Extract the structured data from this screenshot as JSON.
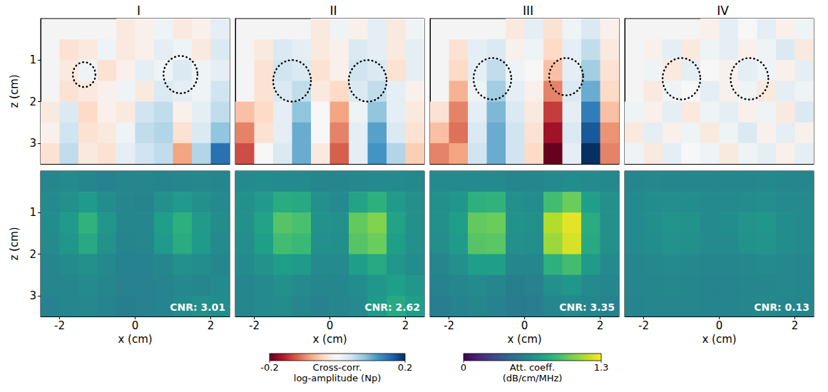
{
  "chart_data": [
    {
      "type": "heatmap",
      "title": "I",
      "ylabel": "z (cm)",
      "tick_labels": "y",
      "xlim": [
        -2.5,
        2.5
      ],
      "xticks": [
        -2,
        0,
        2
      ],
      "ylim": [
        0,
        3.5
      ],
      "yticks": [
        1,
        2,
        3
      ],
      "x": [
        -2.25,
        -1.75,
        -1.25,
        -0.75,
        -0.25,
        0.25,
        0.75,
        1.25,
        1.75,
        2.25
      ],
      "y": [
        0.25,
        0.75,
        1.25,
        1.75,
        2.25,
        2.75,
        3.25
      ],
      "cells": [
        [
          null,
          null,
          null,
          null,
          -0.02,
          -0.01,
          0.01,
          -0.02,
          -0.01,
          0.02
        ],
        [
          null,
          -0.03,
          -0.02,
          0.01,
          -0.02,
          -0.01,
          0.02,
          0.01,
          -0.02,
          0.03
        ],
        [
          null,
          -0.02,
          0.01,
          -0.03,
          -0.01,
          0.02,
          0.01,
          0.03,
          0.01,
          0.02
        ],
        [
          null,
          -0.03,
          -0.02,
          -0.01,
          0.01,
          -0.02,
          0.03,
          0.02,
          0.01,
          0.04
        ],
        [
          -0.02,
          0.03,
          -0.04,
          -0.01,
          -0.02,
          0.04,
          0.05,
          -0.01,
          0.02,
          0.05
        ],
        [
          -0.01,
          0.04,
          -0.03,
          -0.02,
          0.01,
          0.05,
          0.06,
          -0.03,
          0.03,
          0.08
        ],
        [
          -0.03,
          0.05,
          -0.02,
          -0.03,
          0.02,
          0.04,
          0.05,
          -0.08,
          0.06,
          0.15
        ]
      ],
      "circles": [
        {
          "x": -1.35,
          "z": 1.35,
          "r": 0.3
        },
        {
          "x": 1.2,
          "z": 1.35,
          "r": 0.45
        }
      ],
      "colorbar": {
        "range": [
          -0.2,
          0.2
        ],
        "ticks": [
          -0.2,
          0.2
        ],
        "label": [
          "Cross-corr.",
          "log-amplitude (Np)"
        ]
      }
    },
    {
      "type": "heatmap",
      "title": "II",
      "tick_labels": false,
      "xlim": [
        -2.5,
        2.5
      ],
      "xticks": [
        -2,
        0,
        2
      ],
      "ylim": [
        0,
        3.5
      ],
      "yticks": [
        1,
        2,
        3
      ],
      "x": [
        -2.25,
        -1.75,
        -1.25,
        -0.75,
        -0.25,
        0.25,
        0.75,
        1.25,
        1.75,
        2.25
      ],
      "y": [
        0.25,
        0.75,
        1.25,
        1.75,
        2.25,
        2.75,
        3.25
      ],
      "cells": [
        [
          null,
          null,
          null,
          null,
          -0.02,
          0.01,
          -0.01,
          0.02,
          -0.02,
          0.01
        ],
        [
          null,
          -0.02,
          0.03,
          0.02,
          -0.02,
          -0.01,
          0.03,
          0.02,
          -0.02,
          0.02
        ],
        [
          null,
          -0.03,
          0.04,
          0.03,
          -0.03,
          -0.01,
          0.04,
          0.03,
          -0.03,
          0.02
        ],
        [
          null,
          -0.03,
          0.03,
          0.05,
          -0.02,
          -0.04,
          0.03,
          0.05,
          0.02,
          -0.01
        ],
        [
          -0.06,
          -0.04,
          0.02,
          0.08,
          0.0,
          -0.08,
          0.01,
          0.08,
          0.02,
          -0.02
        ],
        [
          -0.1,
          -0.03,
          0.02,
          0.1,
          0.0,
          -0.1,
          0.02,
          0.11,
          0.03,
          -0.03
        ],
        [
          -0.13,
          0.0,
          0.03,
          0.1,
          -0.02,
          -0.12,
          0.02,
          0.12,
          0.06,
          -0.05
        ]
      ],
      "circles": [
        {
          "x": -1.0,
          "z": 1.5,
          "r": 0.5
        },
        {
          "x": 1.0,
          "z": 1.5,
          "r": 0.5
        }
      ]
    },
    {
      "type": "heatmap",
      "title": "III",
      "tick_labels": false,
      "xlim": [
        -2.5,
        2.5
      ],
      "xticks": [
        -2,
        0,
        2
      ],
      "ylim": [
        0,
        3.5
      ],
      "yticks": [
        1,
        2,
        3
      ],
      "x": [
        -2.25,
        -1.75,
        -1.25,
        -0.75,
        -0.25,
        0.25,
        0.75,
        1.25,
        1.75,
        2.25
      ],
      "y": [
        0.25,
        0.75,
        1.25,
        1.75,
        2.25,
        2.75,
        3.25
      ],
      "cells": [
        [
          null,
          null,
          null,
          null,
          -0.02,
          0.02,
          -0.03,
          0.01,
          0.03,
          -0.01
        ],
        [
          null,
          -0.03,
          0.02,
          0.03,
          -0.01,
          0.01,
          -0.04,
          0.02,
          0.05,
          -0.02
        ],
        [
          null,
          -0.04,
          0.02,
          0.05,
          0.01,
          0.0,
          -0.06,
          0.02,
          0.07,
          -0.03
        ],
        [
          null,
          -0.07,
          0.01,
          0.07,
          0.02,
          -0.01,
          -0.1,
          0.03,
          0.1,
          -0.04
        ],
        [
          -0.03,
          -0.1,
          0.02,
          0.09,
          0.03,
          -0.02,
          -0.14,
          0.02,
          0.14,
          -0.06
        ],
        [
          -0.06,
          -0.11,
          0.03,
          0.1,
          0.04,
          -0.03,
          -0.17,
          0.03,
          0.17,
          -0.09
        ],
        [
          -0.1,
          -0.08,
          0.04,
          0.1,
          0.04,
          -0.04,
          -0.2,
          0.02,
          0.2,
          -0.1
        ]
      ],
      "circles": [
        {
          "x": -0.85,
          "z": 1.45,
          "r": 0.5
        },
        {
          "x": 1.1,
          "z": 1.4,
          "r": 0.45
        }
      ]
    },
    {
      "type": "heatmap",
      "title": "IV",
      "tick_labels": false,
      "xlim": [
        -2.5,
        2.5
      ],
      "xticks": [
        -2,
        0,
        2
      ],
      "ylim": [
        0,
        3.5
      ],
      "yticks": [
        1,
        2,
        3
      ],
      "x": [
        -2.25,
        -1.75,
        -1.25,
        -0.75,
        -0.25,
        0.25,
        0.75,
        1.25,
        1.75,
        2.25
      ],
      "y": [
        0.25,
        0.75,
        1.25,
        1.75,
        2.25,
        2.75,
        3.25
      ],
      "cells": [
        [
          null,
          null,
          null,
          null,
          -0.01,
          0.02,
          0.0,
          0.02,
          -0.01,
          0.01
        ],
        [
          null,
          -0.01,
          0.02,
          -0.02,
          0.01,
          0.02,
          -0.01,
          0.01,
          0.03,
          -0.02
        ],
        [
          null,
          0.01,
          -0.02,
          0.02,
          0.0,
          -0.01,
          0.02,
          0.01,
          -0.01,
          0.02
        ],
        [
          null,
          -0.02,
          0.01,
          0.0,
          0.02,
          -0.01,
          0.01,
          -0.02,
          0.02,
          0.01
        ],
        [
          0.01,
          -0.01,
          0.02,
          -0.02,
          0.01,
          0.02,
          -0.01,
          0.01,
          -0.02,
          0.03
        ],
        [
          -0.02,
          0.02,
          -0.01,
          0.01,
          -0.02,
          0.01,
          0.03,
          -0.01,
          0.02,
          -0.01
        ],
        [
          0.01,
          -0.02,
          0.02,
          0.0,
          0.01,
          -0.02,
          0.01,
          0.02,
          -0.01,
          0.02
        ]
      ],
      "circles": [
        {
          "x": -1.0,
          "z": 1.45,
          "r": 0.5
        },
        {
          "x": 0.8,
          "z": 1.45,
          "r": 0.5
        }
      ]
    },
    {
      "type": "heatmap",
      "xlabel": "x (cm)",
      "ylabel": "z (cm)",
      "annotation": "CNR: 3.01",
      "xlim": [
        -2.5,
        2.5
      ],
      "xticks": [
        -2,
        0,
        2
      ],
      "ylim": [
        0,
        3.5
      ],
      "yticks": [
        1,
        2,
        3
      ],
      "x": [
        -2.25,
        -1.75,
        -1.25,
        -0.75,
        -0.25,
        0.25,
        0.75,
        1.25,
        1.75,
        2.25
      ],
      "y": [
        0.25,
        0.75,
        1.25,
        1.75,
        2.25,
        2.75,
        3.25
      ],
      "cells": [
        [
          0.6,
          0.62,
          0.6,
          0.58,
          0.6,
          0.6,
          0.59,
          0.6,
          0.61,
          0.6
        ],
        [
          0.62,
          0.65,
          0.7,
          0.63,
          0.6,
          0.59,
          0.65,
          0.7,
          0.65,
          0.62
        ],
        [
          0.63,
          0.7,
          0.84,
          0.68,
          0.6,
          0.6,
          0.72,
          0.82,
          0.7,
          0.63
        ],
        [
          0.62,
          0.68,
          0.78,
          0.66,
          0.59,
          0.6,
          0.7,
          0.8,
          0.7,
          0.62
        ],
        [
          0.6,
          0.62,
          0.65,
          0.61,
          0.58,
          0.58,
          0.6,
          0.65,
          0.63,
          0.6
        ],
        [
          0.6,
          0.6,
          0.62,
          0.6,
          0.57,
          0.57,
          0.59,
          0.61,
          0.6,
          0.62
        ],
        [
          0.58,
          0.6,
          0.61,
          0.59,
          0.56,
          0.57,
          0.59,
          0.62,
          0.65,
          0.63
        ]
      ],
      "colorbar": {
        "range": [
          0,
          1.3
        ],
        "ticks": [
          0,
          1.3
        ],
        "label": [
          "Att. coeff.",
          "(dB/cm/MHz)"
        ]
      }
    },
    {
      "type": "heatmap",
      "xlabel": "x (cm)",
      "tick_labels": "x",
      "annotation": "CNR: 2.62",
      "xlim": [
        -2.5,
        2.5
      ],
      "xticks": [
        -2,
        0,
        2
      ],
      "ylim": [
        0,
        3.5
      ],
      "yticks": [
        1,
        2,
        3
      ],
      "x": [
        -2.25,
        -1.75,
        -1.25,
        -0.75,
        -0.25,
        0.25,
        0.75,
        1.25,
        1.75,
        2.25
      ],
      "y": [
        0.25,
        0.75,
        1.25,
        1.75,
        2.25,
        2.75,
        3.25
      ],
      "cells": [
        [
          0.62,
          0.63,
          0.62,
          0.62,
          0.6,
          0.6,
          0.61,
          0.62,
          0.62,
          0.61
        ],
        [
          0.65,
          0.7,
          0.8,
          0.78,
          0.65,
          0.62,
          0.75,
          0.82,
          0.7,
          0.65
        ],
        [
          0.65,
          0.75,
          0.95,
          0.92,
          0.66,
          0.65,
          0.98,
          1.05,
          0.75,
          0.65
        ],
        [
          0.64,
          0.73,
          0.9,
          0.88,
          0.65,
          0.64,
          0.95,
          1.0,
          0.73,
          0.65
        ],
        [
          0.62,
          0.66,
          0.72,
          0.7,
          0.62,
          0.62,
          0.72,
          0.78,
          0.68,
          0.63
        ],
        [
          0.6,
          0.62,
          0.65,
          0.62,
          0.6,
          0.6,
          0.63,
          0.68,
          0.72,
          0.68
        ],
        [
          0.6,
          0.62,
          0.63,
          0.6,
          0.58,
          0.6,
          0.62,
          0.7,
          0.78,
          0.72
        ]
      ]
    },
    {
      "type": "heatmap",
      "xlabel": "x (cm)",
      "tick_labels": "x",
      "annotation": "CNR: 3.35",
      "xlim": [
        -2.5,
        2.5
      ],
      "xticks": [
        -2,
        0,
        2
      ],
      "ylim": [
        0,
        3.5
      ],
      "yticks": [
        1,
        2,
        3
      ],
      "x": [
        -2.25,
        -1.75,
        -1.25,
        -0.75,
        -0.25,
        0.25,
        0.75,
        1.25,
        1.75,
        2.25
      ],
      "y": [
        0.25,
        0.75,
        1.25,
        1.75,
        2.25,
        2.75,
        3.25
      ],
      "cells": [
        [
          0.62,
          0.62,
          0.62,
          0.62,
          0.6,
          0.6,
          0.62,
          0.63,
          0.62,
          0.61
        ],
        [
          0.65,
          0.68,
          0.82,
          0.84,
          0.65,
          0.63,
          0.9,
          1.0,
          0.72,
          0.65
        ],
        [
          0.65,
          0.72,
          0.98,
          1.0,
          0.66,
          0.65,
          1.15,
          1.25,
          0.8,
          0.65
        ],
        [
          0.64,
          0.7,
          0.95,
          0.96,
          0.65,
          0.64,
          1.1,
          1.22,
          0.78,
          0.65
        ],
        [
          0.6,
          0.65,
          0.72,
          0.73,
          0.6,
          0.6,
          0.82,
          0.9,
          0.7,
          0.62
        ],
        [
          0.58,
          0.6,
          0.62,
          0.6,
          0.56,
          0.57,
          0.65,
          0.68,
          0.62,
          0.6
        ],
        [
          0.55,
          0.58,
          0.6,
          0.58,
          0.54,
          0.55,
          0.6,
          0.62,
          0.6,
          0.58
        ]
      ]
    },
    {
      "type": "heatmap",
      "xlabel": "x (cm)",
      "tick_labels": "x",
      "annotation": "CNR: 0.13",
      "xlim": [
        -2.5,
        2.5
      ],
      "xticks": [
        -2,
        0,
        2
      ],
      "ylim": [
        0,
        3.5
      ],
      "yticks": [
        1,
        2,
        3
      ],
      "x": [
        -2.25,
        -1.75,
        -1.25,
        -0.75,
        -0.25,
        0.25,
        0.75,
        1.25,
        1.75,
        2.25
      ],
      "y": [
        0.25,
        0.75,
        1.25,
        1.75,
        2.25,
        2.75,
        3.25
      ],
      "cells": [
        [
          0.6,
          0.61,
          0.6,
          0.6,
          0.6,
          0.6,
          0.6,
          0.61,
          0.6,
          0.6
        ],
        [
          0.62,
          0.63,
          0.64,
          0.63,
          0.62,
          0.62,
          0.63,
          0.64,
          0.62,
          0.62
        ],
        [
          0.62,
          0.64,
          0.67,
          0.66,
          0.62,
          0.63,
          0.67,
          0.68,
          0.63,
          0.62
        ],
        [
          0.62,
          0.63,
          0.66,
          0.65,
          0.62,
          0.62,
          0.66,
          0.67,
          0.63,
          0.62
        ],
        [
          0.6,
          0.61,
          0.62,
          0.61,
          0.6,
          0.6,
          0.61,
          0.62,
          0.61,
          0.6
        ],
        [
          0.6,
          0.6,
          0.61,
          0.6,
          0.59,
          0.59,
          0.6,
          0.6,
          0.61,
          0.6
        ],
        [
          0.59,
          0.6,
          0.6,
          0.6,
          0.59,
          0.59,
          0.6,
          0.61,
          0.6,
          0.6
        ]
      ]
    }
  ]
}
